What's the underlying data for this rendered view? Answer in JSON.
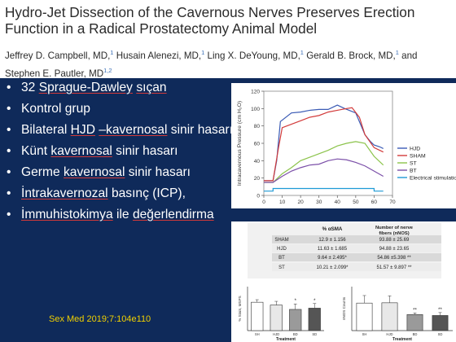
{
  "header": {
    "title": "Hydro-Jet Dissection of the Cavernous Nerves Preserves Erection Function in a Radical Prostatectomy Animal Model",
    "authors": [
      {
        "name": "Jeffrey D. Campbell, MD,",
        "sup": "1"
      },
      {
        "name": "Husain Alenezi, MD,",
        "sup": "1"
      },
      {
        "name": "Ling X. DeYoung, MD,",
        "sup": "1"
      },
      {
        "name": "Gerald B. Brock, MD,",
        "sup": "1"
      },
      {
        "name": "and",
        "sup": ""
      },
      {
        "name": "Stephen E. Pautler, MD",
        "sup": "1,2"
      }
    ]
  },
  "bullets": [
    "32 Sprague-Dawley sıçan",
    "Kontrol grup",
    "Bilateral HJD –kavernosal sinir hasarı",
    "Künt kavernosal sinir hasarı",
    "Germe kavernosal sinir hasarı",
    "İntrakavernozal  basınç (ICP),",
    "İmmuhistokimya ile değerlendirma"
  ],
  "reference": "Sex Med 2019;7:104e110",
  "chart_data": [
    {
      "type": "line",
      "xlabel": "",
      "ylabel": "Intracavernous Pressure (cm H₂O)",
      "xlim": [
        0,
        70
      ],
      "ylim": [
        0,
        120
      ],
      "xticks": [
        0,
        10,
        20,
        30,
        40,
        50,
        60,
        70
      ],
      "yticks": [
        0,
        20,
        40,
        60,
        80,
        100,
        120
      ],
      "series": [
        {
          "name": "HJD",
          "color": "#3b5bb5",
          "x": [
            0,
            5,
            7,
            9,
            15,
            20,
            25,
            30,
            35,
            38,
            40,
            44,
            50,
            52,
            55,
            58,
            60,
            63,
            65
          ],
          "y": [
            17,
            17,
            40,
            85,
            95,
            96,
            98,
            99,
            99,
            102,
            104,
            100,
            95,
            85,
            70,
            62,
            58,
            56,
            54
          ]
        },
        {
          "name": "SHAM",
          "color": "#d23a3a",
          "x": [
            0,
            5,
            8,
            10,
            15,
            20,
            25,
            30,
            35,
            40,
            45,
            48,
            52,
            55,
            60,
            65
          ],
          "y": [
            17,
            17,
            55,
            78,
            82,
            86,
            90,
            92,
            96,
            98,
            100,
            101,
            90,
            70,
            55,
            50
          ]
        },
        {
          "name": "ST",
          "color": "#8bc34a",
          "x": [
            0,
            5,
            10,
            15,
            20,
            25,
            30,
            35,
            40,
            45,
            50,
            55,
            60,
            65
          ],
          "y": [
            15,
            15,
            25,
            32,
            40,
            44,
            48,
            52,
            57,
            60,
            62,
            60,
            45,
            35
          ]
        },
        {
          "name": "BT",
          "color": "#7b4fa8",
          "x": [
            0,
            5,
            10,
            15,
            20,
            25,
            30,
            35,
            40,
            45,
            50,
            55,
            60,
            65
          ],
          "y": [
            15,
            15,
            22,
            28,
            32,
            35,
            36,
            40,
            42,
            41,
            38,
            34,
            28,
            22
          ]
        },
        {
          "name": "Electrical stimulation",
          "color": "#1e9ad6",
          "x": [
            0,
            5,
            5,
            60,
            60,
            65
          ],
          "y": [
            5,
            5,
            8,
            8,
            5,
            5
          ]
        }
      ]
    },
    {
      "type": "table",
      "columns": [
        "",
        "% αSMA",
        "Number of nerve fibers (nNOS)"
      ],
      "rows": [
        [
          "SHAM",
          "12.9 ± 1.156",
          "93.88 ± 25.69"
        ],
        [
          "HJD",
          "11.63 ± 1.685",
          "94.88 ± 23.65"
        ],
        [
          "BT",
          "9.64 ± 2.495*",
          "54.86 ±5.398 **"
        ],
        [
          "ST",
          "10.21 ± 2.099*",
          "51.57 ± 9.897 **"
        ]
      ]
    },
    {
      "type": "bar",
      "ylabel": "% Stain, MSPS",
      "xlabel": "Treatment",
      "categories": [
        "SH",
        "HJD",
        "BD",
        "SD"
      ],
      "values": [
        12.9,
        11.63,
        9.64,
        10.21
      ],
      "errors": [
        1.156,
        1.685,
        2.495,
        2.099
      ],
      "annotations": [
        "",
        "",
        "*",
        "*"
      ],
      "ylim": [
        0,
        20
      ],
      "colors": [
        "#ffffff",
        "#e8e8e8",
        "#9a9a9a",
        "#555555"
      ]
    },
    {
      "type": "bar",
      "ylabel": "nNOS Counts",
      "xlabel": "Treatment",
      "categories": [
        "SH",
        "HJD",
        "BD",
        "SD"
      ],
      "values": [
        93.88,
        94.88,
        54.86,
        51.57
      ],
      "errors": [
        25.69,
        23.65,
        5.398,
        9.897
      ],
      "annotations": [
        "",
        "",
        "**",
        "**"
      ],
      "ylim": [
        0,
        150
      ],
      "colors": [
        "#ffffff",
        "#e8e8e8",
        "#9a9a9a",
        "#555555"
      ]
    }
  ]
}
